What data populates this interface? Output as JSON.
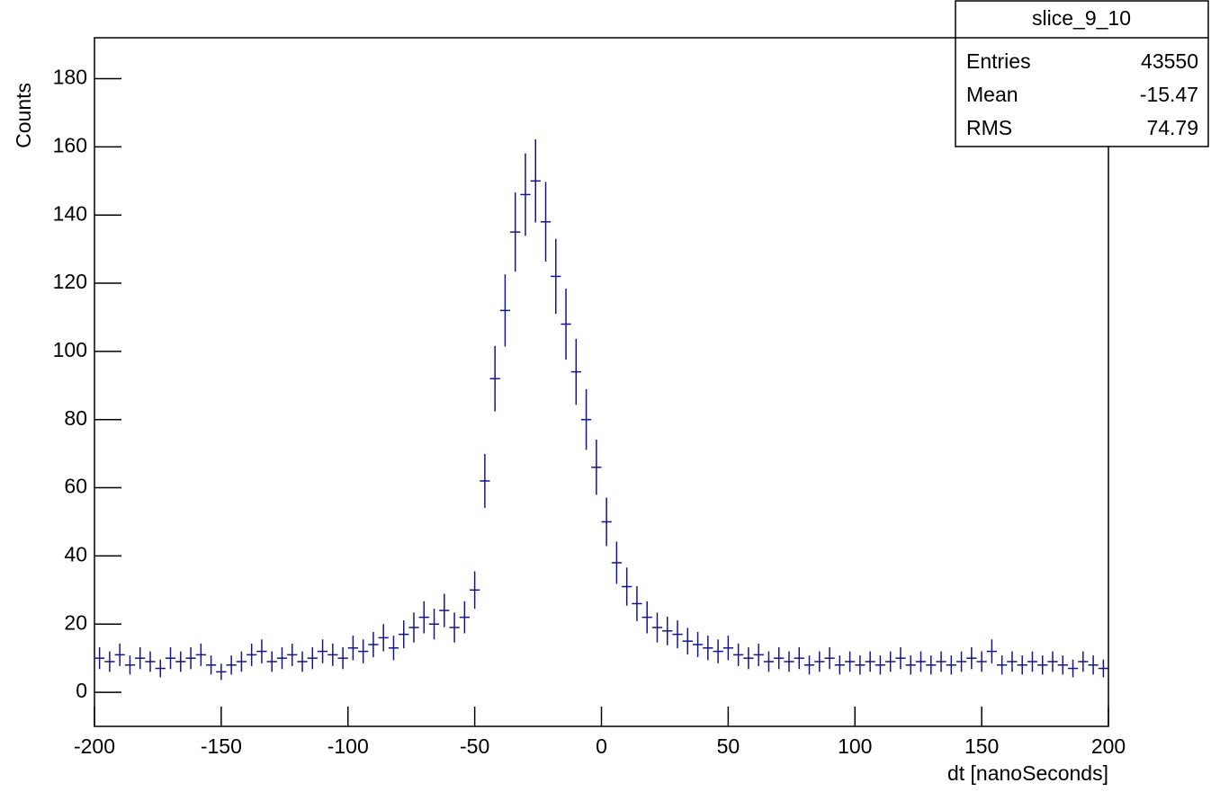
{
  "chart_data": {
    "type": "histogram",
    "y_label": "Counts",
    "x_label": "dt [nanoSeconds]",
    "xlim": [
      -200,
      200
    ],
    "ylim": [
      -10,
      192
    ],
    "xticks": [
      -200,
      -150,
      -100,
      -50,
      0,
      50,
      100,
      150,
      200
    ],
    "yticks": [
      0,
      20,
      40,
      60,
      80,
      100,
      120,
      140,
      160,
      180
    ],
    "color": "#14148c",
    "bins": [
      -200,
      -196,
      -192,
      -188,
      -184,
      -180,
      -176,
      -172,
      -168,
      -164,
      -160,
      -156,
      -152,
      -148,
      -144,
      -140,
      -136,
      -132,
      -128,
      -124,
      -120,
      -116,
      -112,
      -108,
      -104,
      -100,
      -96,
      -92,
      -88,
      -84,
      -80,
      -76,
      -72,
      -68,
      -64,
      -60,
      -56,
      -52,
      -48,
      -44,
      -40,
      -36,
      -32,
      -28,
      -24,
      -20,
      -16,
      -12,
      -8,
      -4,
      0,
      4,
      8,
      12,
      16,
      20,
      24,
      28,
      32,
      36,
      40,
      44,
      48,
      52,
      56,
      60,
      64,
      68,
      72,
      76,
      80,
      84,
      88,
      92,
      96,
      100,
      104,
      108,
      112,
      116,
      120,
      124,
      128,
      132,
      136,
      140,
      144,
      148,
      152,
      156,
      160,
      164,
      168,
      172,
      176,
      180,
      184,
      188,
      192,
      196,
      200
    ],
    "values": [
      10,
      9,
      11,
      8,
      10,
      9,
      7,
      10,
      9,
      10,
      11,
      8,
      6,
      8,
      9,
      11,
      12,
      9,
      10,
      11,
      9,
      10,
      12,
      11,
      10,
      13,
      12,
      14,
      16,
      13,
      17,
      19,
      22,
      20,
      24,
      19,
      22,
      30,
      62,
      92,
      112,
      135,
      146,
      150,
      138,
      122,
      108,
      94,
      80,
      66,
      50,
      38,
      31,
      26,
      22,
      19,
      18,
      17,
      15,
      14,
      13,
      12,
      13,
      11,
      10,
      11,
      9,
      10,
      9,
      10,
      8,
      9,
      10,
      8,
      9,
      8,
      9,
      8,
      9,
      10,
      8,
      9,
      8,
      9,
      8,
      9,
      10,
      9,
      12,
      8,
      9,
      8,
      9,
      8,
      9,
      8,
      7,
      9,
      8,
      7
    ],
    "errors": [
      3.2,
      3,
      3.3,
      2.8,
      3.2,
      3,
      2.6,
      3.2,
      3,
      3.2,
      3.3,
      2.8,
      2.4,
      2.8,
      3,
      3.3,
      3.5,
      3,
      3.2,
      3.3,
      3,
      3.2,
      3.5,
      3.3,
      3.2,
      3.6,
      3.5,
      3.7,
      4,
      3.6,
      4.1,
      4.4,
      4.7,
      4.5,
      4.9,
      4.4,
      4.7,
      5.5,
      7.9,
      9.6,
      10.6,
      11.6,
      12.1,
      12.2,
      11.7,
      11,
      10.4,
      9.7,
      8.9,
      8.1,
      7.1,
      6.2,
      5.6,
      5.1,
      4.7,
      4.4,
      4.2,
      4.1,
      3.9,
      3.7,
      3.6,
      3.5,
      3.6,
      3.3,
      3.2,
      3.3,
      3,
      3.2,
      3,
      3.2,
      2.8,
      3,
      3.2,
      2.8,
      3,
      2.8,
      3,
      2.8,
      3,
      3.2,
      2.8,
      3,
      2.8,
      3,
      2.8,
      3,
      3.2,
      3,
      3.5,
      2.8,
      3,
      2.8,
      3,
      2.8,
      3,
      2.8,
      2.6,
      3,
      2.8,
      2.6
    ],
    "stats": {
      "name": "slice_9_10",
      "rows": [
        {
          "label": "Entries",
          "value": 43550
        },
        {
          "label": "Mean",
          "value": -15.47
        },
        {
          "label": "RMS",
          "value": 74.79
        }
      ]
    }
  }
}
